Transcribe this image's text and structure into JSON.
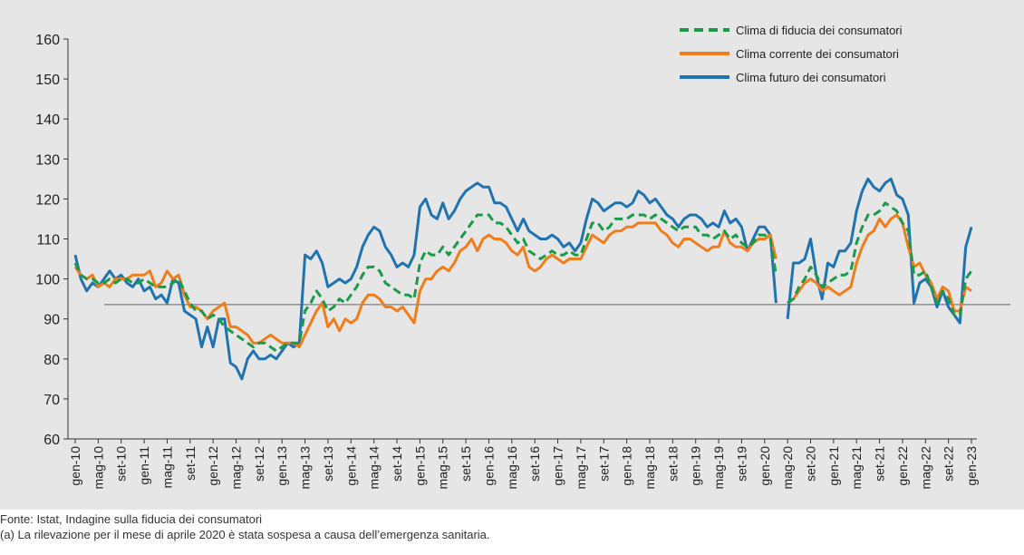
{
  "chart_data": {
    "type": "line",
    "categories": [
      "gen-10",
      null,
      null,
      null,
      "mag-10",
      null,
      null,
      null,
      "set-10",
      null,
      null,
      null,
      "gen-11",
      null,
      null,
      null,
      "mag-11",
      null,
      null,
      null,
      "set-11",
      null,
      null,
      null,
      "gen-12",
      null,
      null,
      null,
      "mag-12",
      null,
      null,
      null,
      "set-12",
      null,
      null,
      null,
      "gen-13",
      null,
      null,
      null,
      "mag-13",
      null,
      null,
      null,
      "set-13",
      null,
      null,
      null,
      "gen-14",
      null,
      null,
      null,
      "mag-14",
      null,
      null,
      null,
      "set-14",
      null,
      null,
      null,
      "gen-15",
      null,
      null,
      null,
      "mag-15",
      null,
      null,
      null,
      "set-15",
      null,
      null,
      null,
      "gen-16",
      null,
      null,
      null,
      "mag-16",
      null,
      null,
      null,
      "set-16",
      null,
      null,
      null,
      "gen-17",
      null,
      null,
      null,
      "mag-17",
      null,
      null,
      null,
      "set-17",
      null,
      null,
      null,
      "gen-18",
      null,
      null,
      null,
      "mag-18",
      null,
      null,
      null,
      "set-18",
      null,
      null,
      null,
      "gen-19",
      null,
      null,
      null,
      "mag-19",
      null,
      null,
      null,
      "set-19",
      null,
      null,
      null,
      "gen-20",
      null,
      null,
      null,
      "mag-20",
      null,
      null,
      null,
      "set-20",
      null,
      null,
      null,
      "gen-21",
      null,
      null,
      null,
      "mag-21",
      null,
      null,
      null,
      "set-21",
      null,
      null,
      null,
      "gen-22",
      null,
      null,
      null,
      "mag-22",
      null,
      null,
      null,
      "set-22",
      null,
      null,
      null,
      "gen-23"
    ],
    "series": [
      {
        "name": "Clima futuro dei consumatori",
        "color": "#1f73b0",
        "dashed": false,
        "values": [
          106,
          100,
          97,
          99,
          98,
          100,
          102,
          100,
          101,
          99,
          98,
          100,
          97,
          98,
          95,
          96,
          94,
          100,
          99,
          92,
          91,
          90,
          83,
          88,
          83,
          90,
          90,
          79,
          78,
          75,
          80,
          82,
          80,
          80,
          81,
          80,
          82,
          84,
          83,
          84,
          106,
          105,
          107,
          104,
          98,
          99,
          100,
          99,
          100,
          103,
          108,
          111,
          113,
          112,
          108,
          106,
          103,
          104,
          103,
          106,
          118,
          120,
          116,
          115,
          119,
          115,
          117,
          120,
          122,
          123,
          124,
          123,
          123,
          119,
          119,
          118,
          115,
          112,
          115,
          112,
          111,
          110,
          110,
          111,
          110,
          108,
          109,
          107,
          109,
          115,
          120,
          119,
          117,
          118,
          119,
          119,
          118,
          119,
          122,
          121,
          119,
          120,
          118,
          116,
          115,
          113,
          115,
          116,
          116,
          115,
          113,
          114,
          113,
          117,
          114,
          115,
          113,
          107,
          110,
          113,
          113,
          111,
          94,
          null,
          90,
          104,
          104,
          105,
          110,
          101,
          95,
          104,
          103,
          107,
          107,
          109,
          117,
          122,
          125,
          123,
          122,
          124,
          125,
          121,
          120,
          116,
          94,
          99,
          100,
          98,
          93,
          97,
          93,
          91,
          89,
          108,
          113
        ]
      },
      {
        "name": "Clima corrente dei consumatori",
        "color": "#f07d1a",
        "dashed": false,
        "values": [
          103,
          101,
          100,
          101,
          98,
          99,
          98,
          100,
          100,
          100,
          101,
          101,
          101,
          102,
          98,
          99,
          102,
          100,
          101,
          96,
          93,
          93,
          92,
          90,
          92,
          93,
          94,
          88,
          88,
          87,
          86,
          84,
          84,
          85,
          86,
          85,
          84,
          84,
          84,
          83,
          86,
          89,
          92,
          94,
          88,
          90,
          87,
          90,
          89,
          90,
          94,
          96,
          96,
          95,
          93,
          93,
          92,
          93,
          91,
          89,
          97,
          100,
          100,
          102,
          103,
          102,
          104,
          107,
          108,
          110,
          107,
          110,
          111,
          110,
          110,
          109,
          107,
          106,
          108,
          103,
          102,
          103,
          105,
          106,
          105,
          104,
          105,
          105,
          105,
          108,
          111,
          110,
          109,
          111,
          112,
          112,
          113,
          113,
          114,
          114,
          114,
          114,
          112,
          111,
          109,
          108,
          110,
          110,
          109,
          108,
          107,
          108,
          108,
          112,
          109,
          108,
          108,
          107,
          109,
          110,
          110,
          111,
          105,
          null,
          94,
          95,
          97,
          99,
          100,
          99,
          97,
          98,
          97,
          96,
          97,
          98,
          104,
          108,
          111,
          112,
          115,
          113,
          115,
          116,
          114,
          108,
          103,
          104,
          101,
          99,
          95,
          98,
          97,
          92,
          92,
          98,
          97
        ]
      },
      {
        "name": "Clima di fiducia dei consumatori",
        "color": "#1a9a4a",
        "dashed": true,
        "values": [
          104,
          101,
          100,
          100,
          99,
          99,
          100,
          99,
          100,
          100,
          99,
          99,
          100,
          99,
          98,
          98,
          98,
          99,
          100,
          97,
          94,
          92,
          92,
          90,
          91,
          90,
          88,
          87,
          86,
          85,
          84,
          83,
          84,
          84,
          83,
          82,
          83,
          84,
          84,
          84,
          92,
          94,
          97,
          95,
          92,
          93,
          95,
          94,
          96,
          98,
          101,
          103,
          103,
          102,
          99,
          98,
          97,
          96,
          96,
          95,
          104,
          107,
          106,
          106,
          108,
          106,
          108,
          110,
          112,
          114,
          116,
          116,
          116,
          114,
          114,
          113,
          111,
          109,
          110,
          107,
          106,
          105,
          106,
          107,
          106,
          106,
          107,
          106,
          106,
          110,
          114,
          114,
          112,
          113,
          115,
          115,
          115,
          116,
          116,
          116,
          115,
          116,
          115,
          114,
          113,
          112,
          113,
          113,
          113,
          111,
          111,
          110,
          111,
          112,
          110,
          111,
          109,
          108,
          109,
          111,
          111,
          110,
          101,
          null,
          94,
          95,
          98,
          100,
          103,
          101,
          98,
          99,
          100,
          101,
          101,
          102,
          109,
          113,
          116,
          116,
          117,
          119,
          118,
          117,
          114,
          112,
          101,
          101,
          102,
          98,
          94,
          97,
          95,
          91,
          91,
          100,
          102
        ]
      }
    ],
    "legend_order": [
      2,
      1,
      0
    ],
    "reference_line": 93.6,
    "ylim": [
      60,
      160
    ],
    "yticks": [
      60,
      70,
      80,
      90,
      100,
      110,
      120,
      130,
      140,
      150,
      160
    ],
    "notes": [
      "Fonte: Istat, Indagine sulla fiducia dei consumatori",
      "(a) La rilevazione per il mese di aprile 2020 è stata sospesa a causa dell’emergenza sanitaria."
    ]
  }
}
